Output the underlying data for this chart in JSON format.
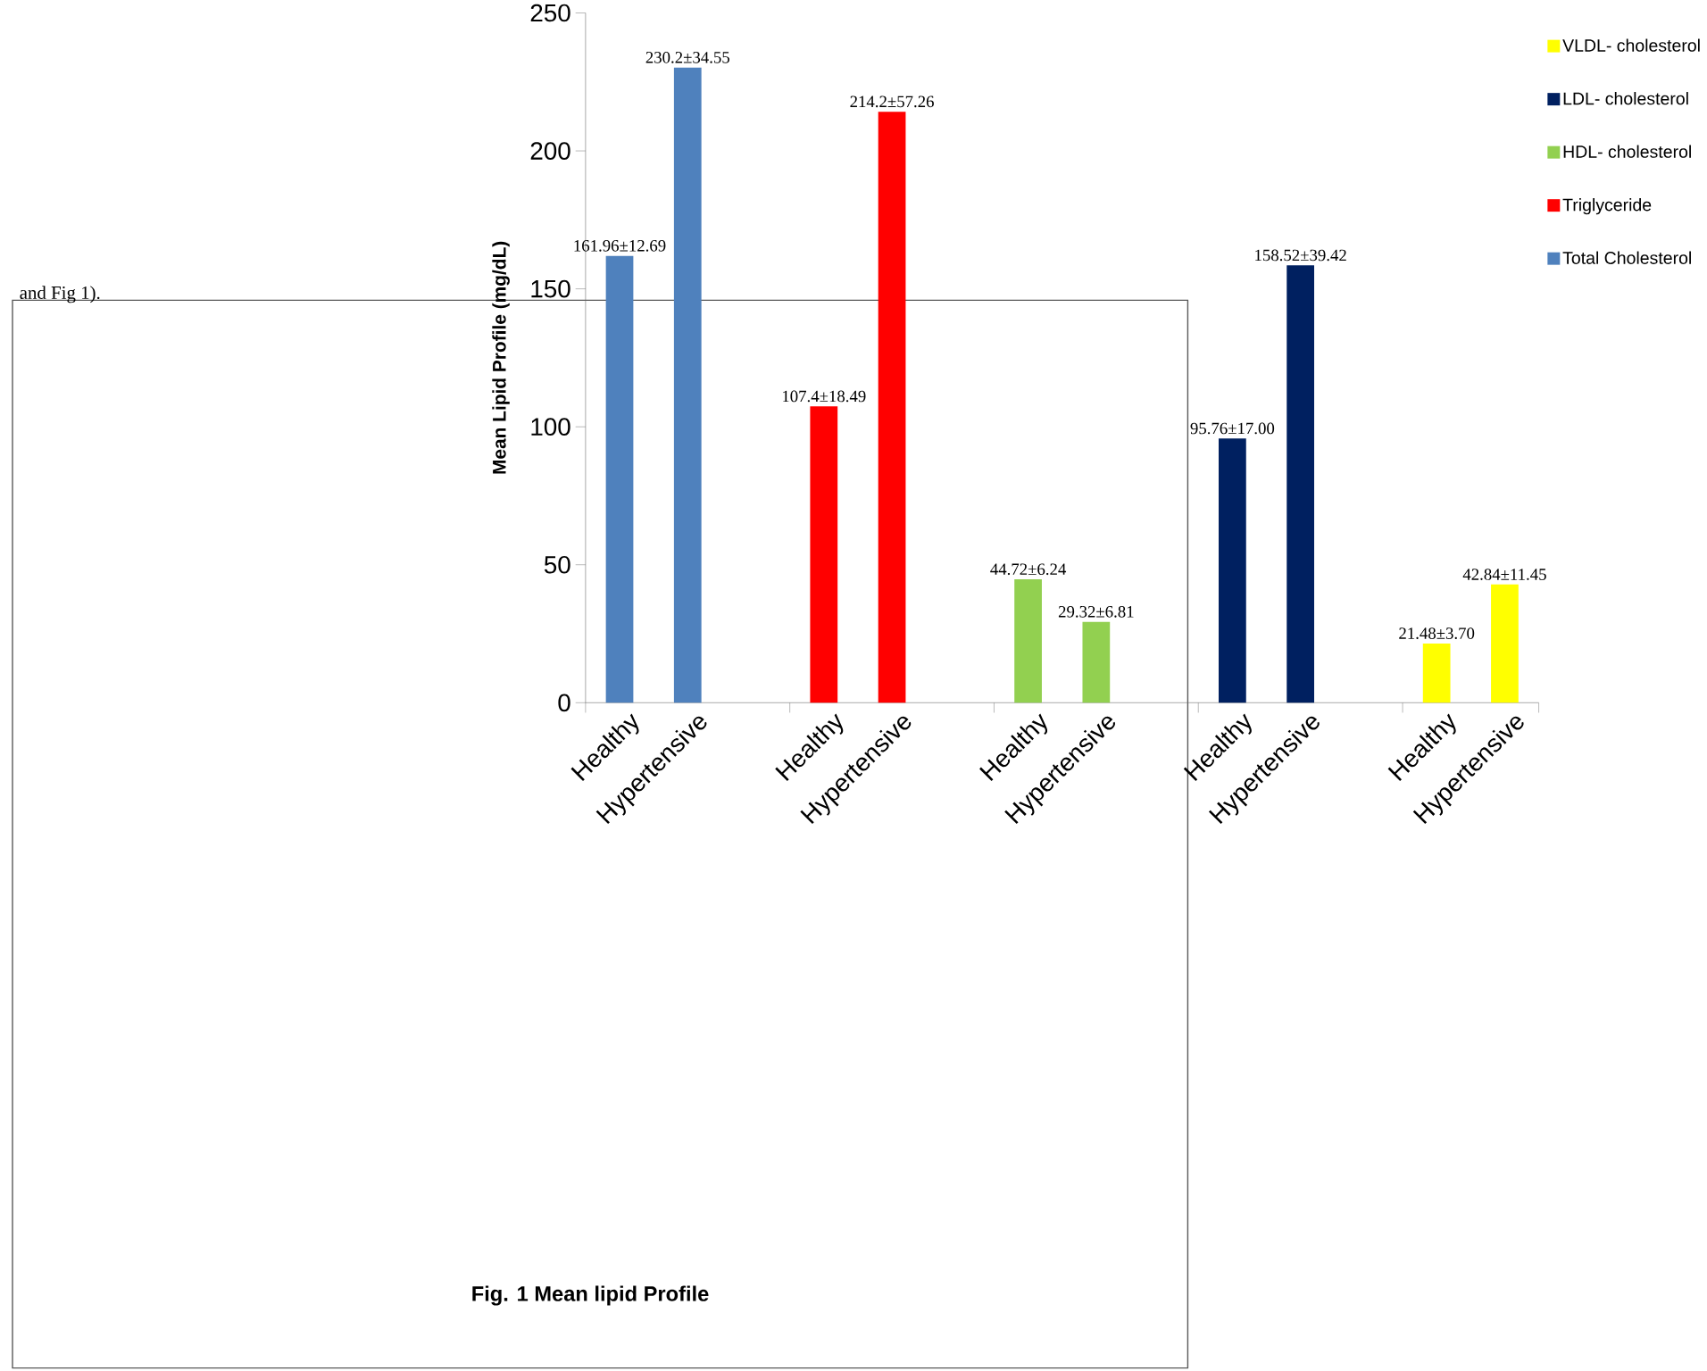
{
  "chart_data": {
    "type": "bar",
    "title": "Fig. 1 Mean lipid Profile",
    "ylabel": "Mean Lipid Profile (mg/dL)",
    "annotations": [
      "and Fig 1)."
    ],
    "categories": [
      "Healthy",
      "Hypertensive",
      null,
      "Healthy",
      "Hypertensive",
      null,
      "Healthy",
      "Hypertensive",
      null,
      "Healthy",
      "Hypertensive",
      null,
      "Healthy",
      "Hypertensive"
    ],
    "series": [
      {
        "name": "Total Cholesterol",
        "color": "#4f81bd",
        "values": [
          161.96,
          230.2,
          null,
          null,
          null,
          null,
          null,
          null,
          null,
          null,
          null,
          null,
          null,
          null
        ],
        "value_labels": [
          "161.96±12.69",
          "230.2±34.55",
          null,
          null,
          null,
          null,
          null,
          null,
          null,
          null,
          null,
          null,
          null,
          null
        ]
      },
      {
        "name": "Triglyceride",
        "color": "#ff0000",
        "values": [
          null,
          null,
          null,
          107.4,
          214.2,
          null,
          null,
          null,
          null,
          null,
          null,
          null,
          null,
          null
        ],
        "value_labels": [
          null,
          null,
          null,
          "107.4±18.49",
          "214.2±57.26",
          null,
          null,
          null,
          null,
          null,
          null,
          null,
          null,
          null
        ]
      },
      {
        "name": "HDL- cholesterol",
        "color": "#92d050",
        "values": [
          null,
          null,
          null,
          null,
          null,
          null,
          44.72,
          29.32,
          null,
          null,
          null,
          null,
          null,
          null
        ],
        "value_labels": [
          null,
          null,
          null,
          null,
          null,
          null,
          "44.72±6.24",
          "29.32±6.81",
          null,
          null,
          null,
          null,
          null,
          null
        ]
      },
      {
        "name": "LDL- cholesterol",
        "color": "#002060",
        "values": [
          null,
          null,
          null,
          null,
          null,
          null,
          null,
          null,
          null,
          95.76,
          158.52,
          null,
          null,
          null
        ],
        "value_labels": [
          null,
          null,
          null,
          null,
          null,
          null,
          null,
          null,
          null,
          "95.76±17.00",
          "158.52±39.42",
          null,
          null,
          null
        ]
      },
      {
        "name": "VLDL- cholesterol",
        "color": "#ffff00",
        "values": [
          null,
          null,
          null,
          null,
          null,
          null,
          null,
          null,
          null,
          null,
          null,
          null,
          21.48,
          42.84
        ],
        "value_labels": [
          null,
          null,
          null,
          null,
          null,
          null,
          null,
          null,
          null,
          null,
          null,
          null,
          "21.48±3.70",
          "42.84±11.45"
        ]
      }
    ],
    "ylim": [
      0,
      250
    ],
    "yticks": [
      0,
      50,
      100,
      150,
      200,
      250
    ],
    "legend": "right",
    "grid": false
  }
}
